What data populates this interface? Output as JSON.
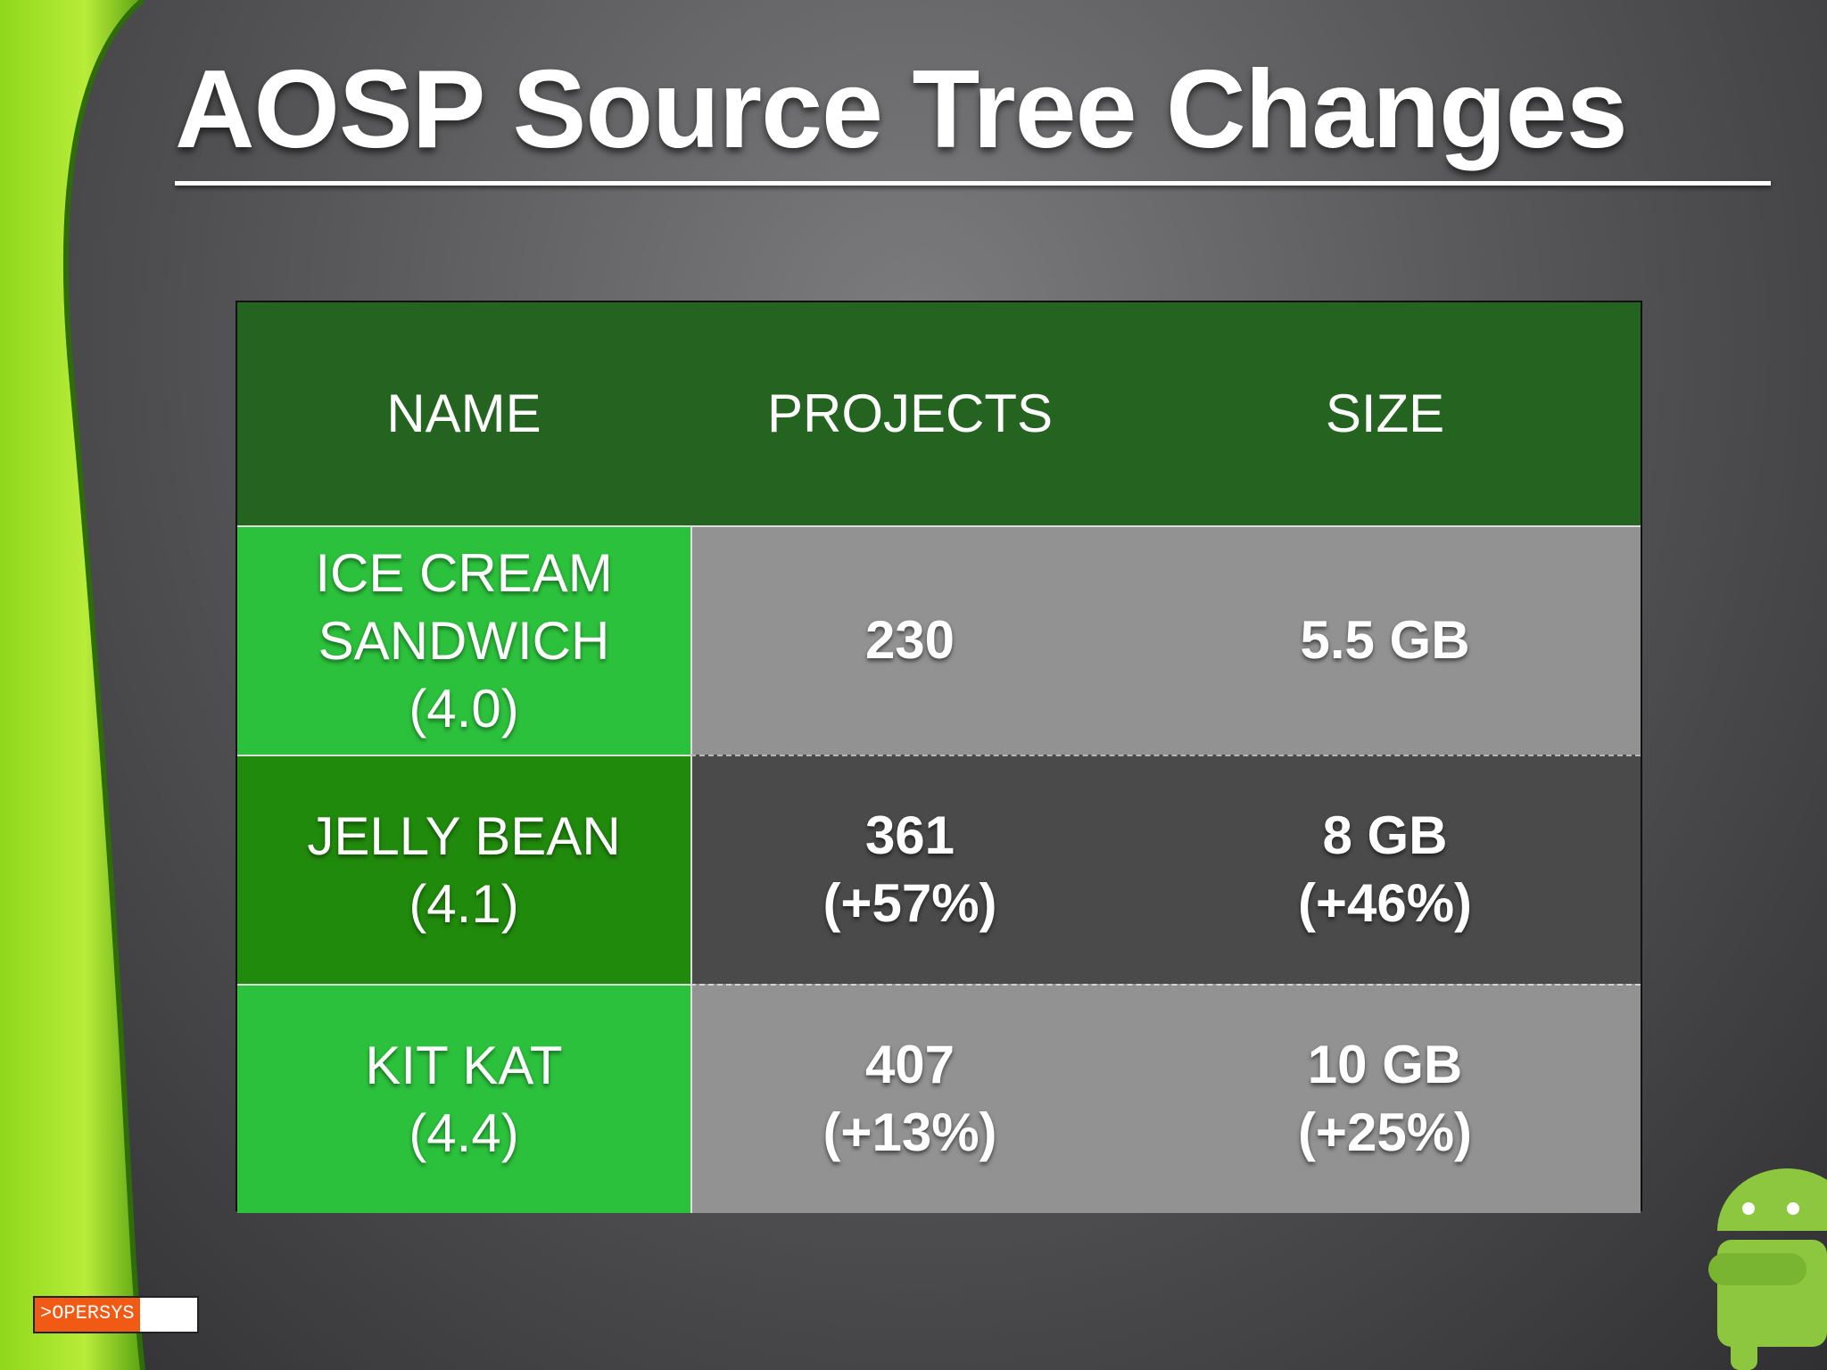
{
  "header": {
    "title": "AOSP Source Tree Changes"
  },
  "table": {
    "columns": [
      "NAME",
      "PROJECTS",
      "SIZE"
    ],
    "rows": [
      [
        [
          "ICE CREAM",
          "SANDWICH",
          "(4.0)"
        ],
        [
          "230"
        ],
        [
          "5.5 GB"
        ]
      ],
      [
        [
          "JELLY BEAN",
          "(4.1)"
        ],
        [
          "361",
          "(+57%)"
        ],
        [
          "8 GB",
          "(+46%)"
        ]
      ],
      [
        [
          "KIT KAT",
          "(4.4)"
        ],
        [
          "407",
          "(+13%)"
        ],
        [
          "10 GB",
          "(+25%)"
        ]
      ]
    ]
  },
  "footer": {
    "logo": ">OPERSYS"
  }
}
